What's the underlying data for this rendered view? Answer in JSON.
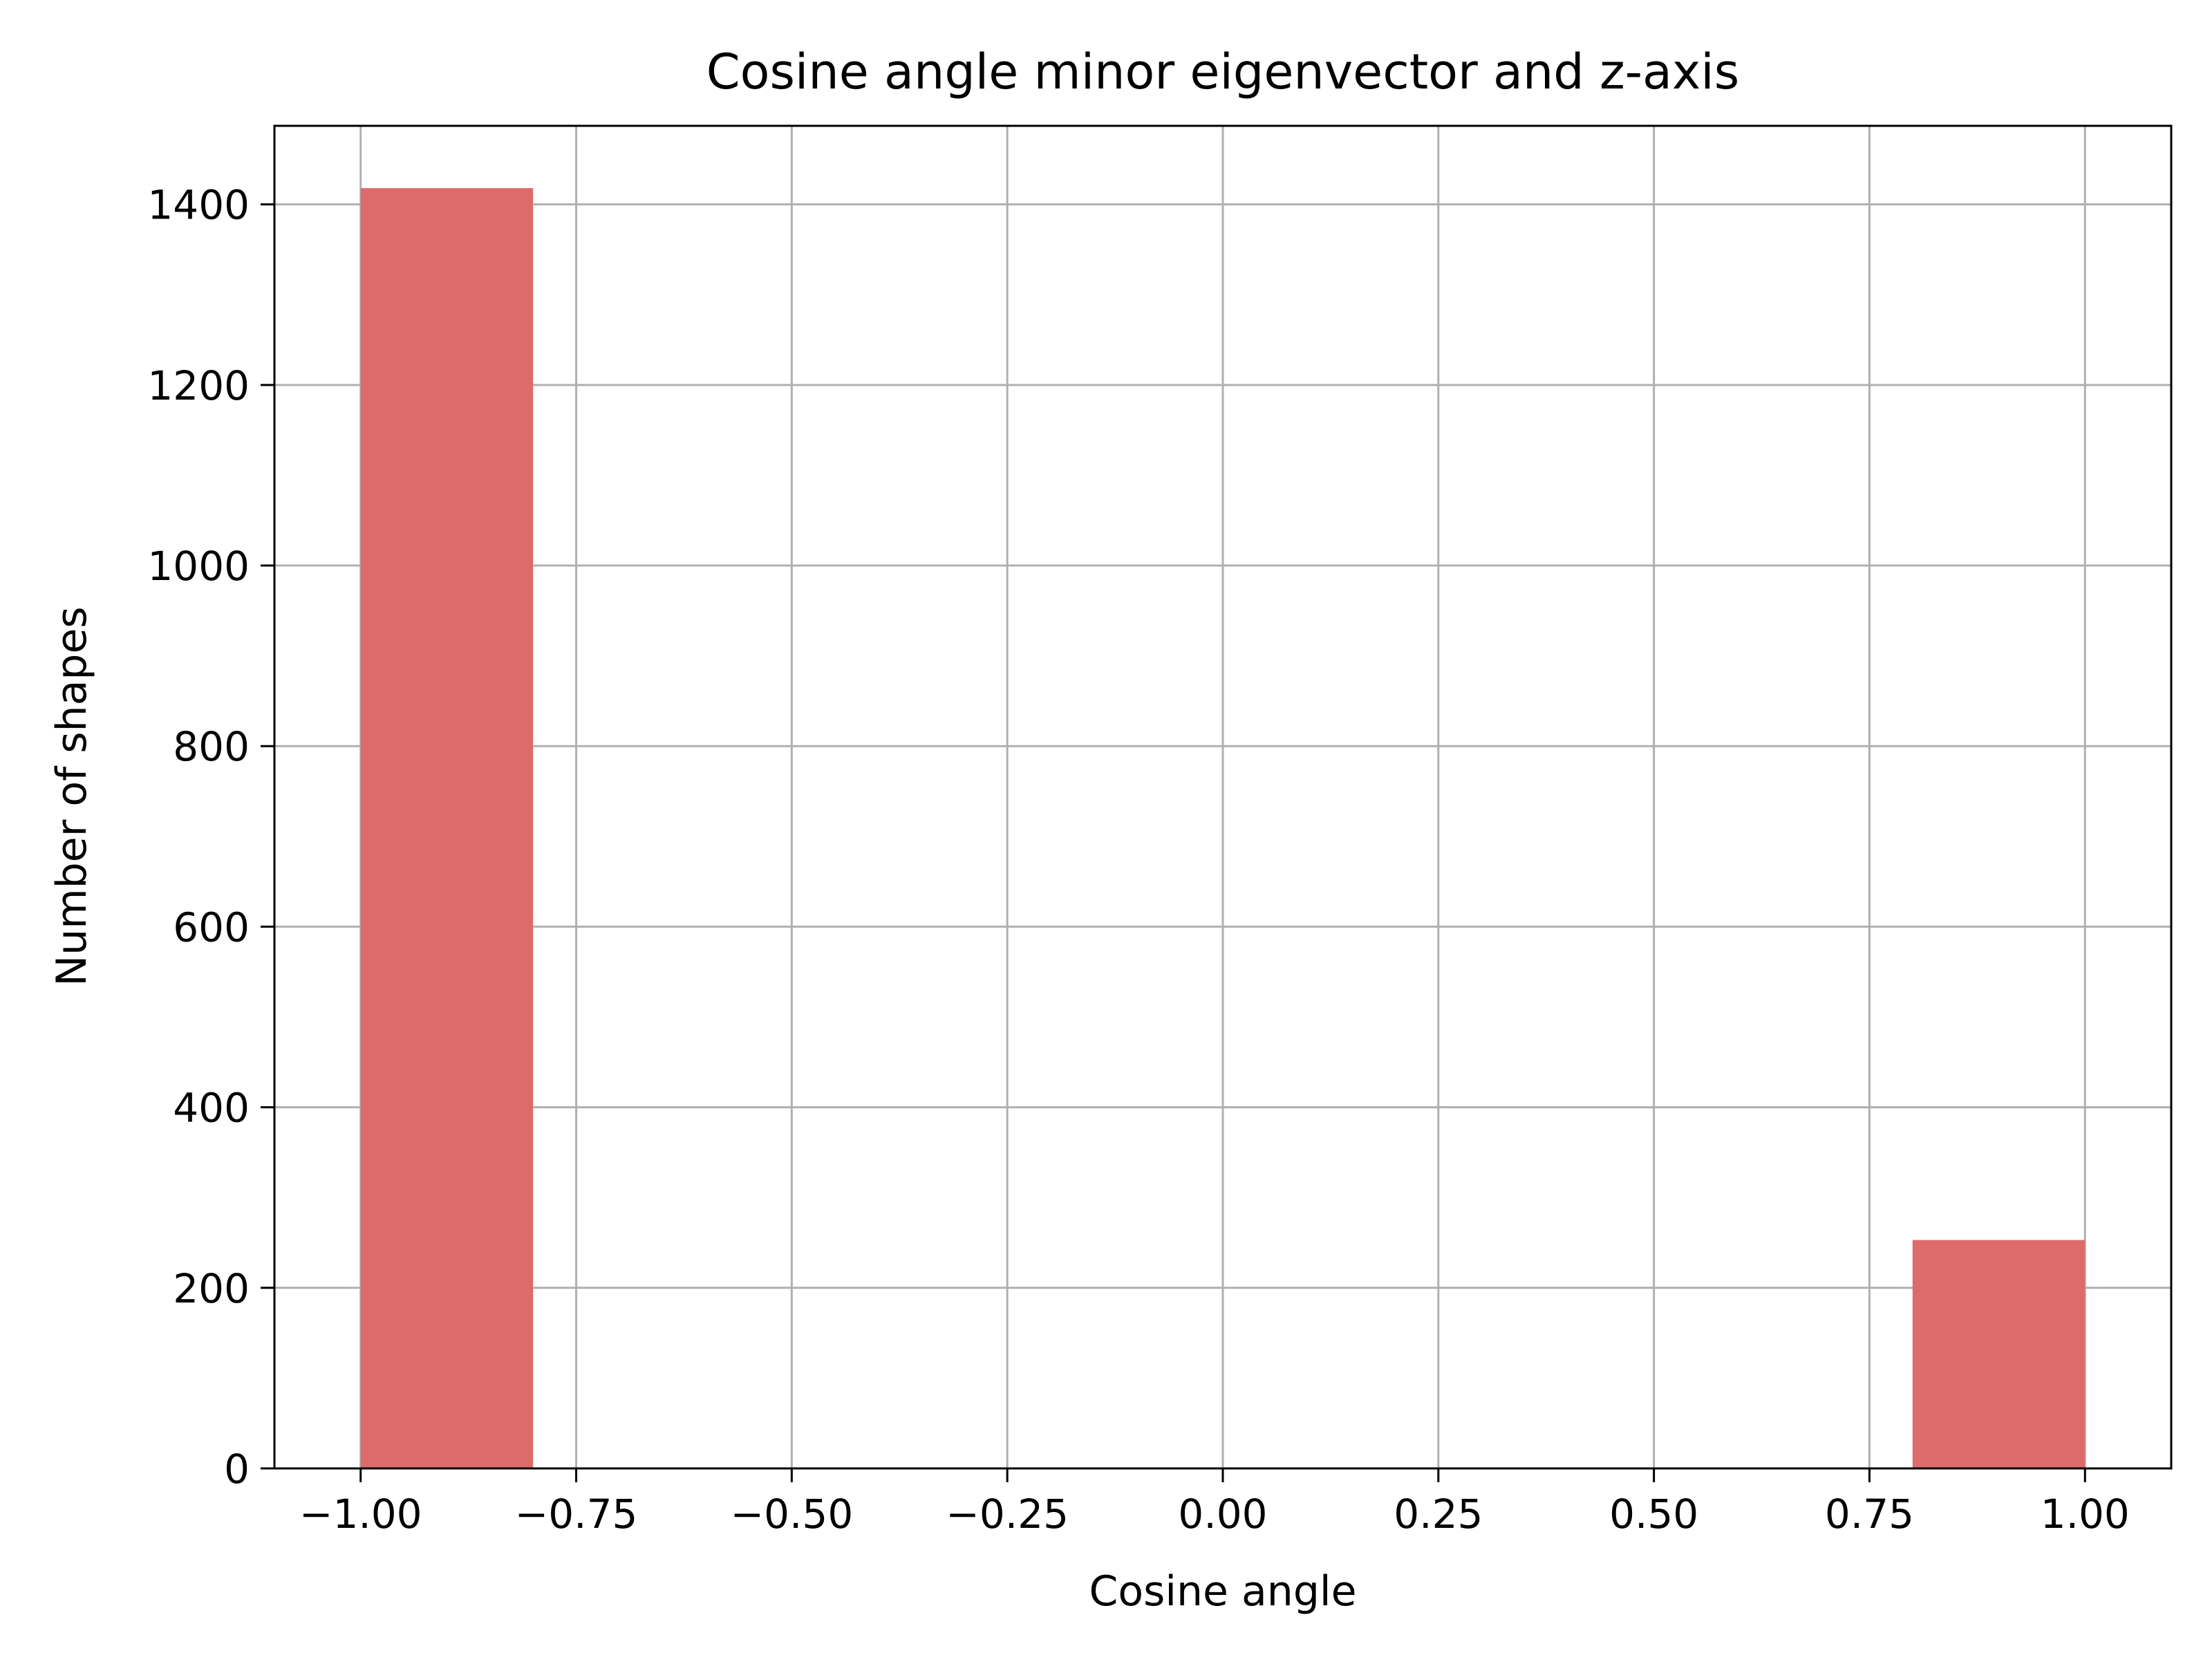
{
  "chart_data": {
    "type": "bar",
    "title": "Cosine angle minor eigenvector and z-axis",
    "xlabel": "Cosine angle",
    "ylabel": "Number of shapes",
    "xlim": [
      -1.1,
      1.1
    ],
    "ylim": [
      0,
      1487
    ],
    "grid": true,
    "legend": "none",
    "bar_color": "#dc6b69",
    "grid_color": "#b0b0b0",
    "bins": [
      {
        "x0": -1.0,
        "x1": -0.8,
        "value": 1418
      },
      {
        "x0": -0.8,
        "x1": -0.6,
        "value": 0
      },
      {
        "x0": -0.6,
        "x1": -0.4,
        "value": 0
      },
      {
        "x0": -0.4,
        "x1": -0.2,
        "value": 0
      },
      {
        "x0": -0.2,
        "x1": 0.0,
        "value": 0
      },
      {
        "x0": 0.0,
        "x1": 0.2,
        "value": 0
      },
      {
        "x0": 0.2,
        "x1": 0.4,
        "value": 0
      },
      {
        "x0": 0.4,
        "x1": 0.6,
        "value": 0
      },
      {
        "x0": 0.6,
        "x1": 0.8,
        "value": 0
      },
      {
        "x0": 0.8,
        "x1": 1.0,
        "value": 253
      }
    ],
    "xticks": [
      {
        "value": -1.0,
        "label": "−1.00"
      },
      {
        "value": -0.75,
        "label": "−0.75"
      },
      {
        "value": -0.5,
        "label": "−0.50"
      },
      {
        "value": -0.25,
        "label": "−0.25"
      },
      {
        "value": 0.0,
        "label": "0.00"
      },
      {
        "value": 0.25,
        "label": "0.25"
      },
      {
        "value": 0.5,
        "label": "0.50"
      },
      {
        "value": 0.75,
        "label": "0.75"
      },
      {
        "value": 1.0,
        "label": "1.00"
      }
    ],
    "yticks": [
      {
        "value": 0,
        "label": "0"
      },
      {
        "value": 200,
        "label": "200"
      },
      {
        "value": 400,
        "label": "400"
      },
      {
        "value": 600,
        "label": "600"
      },
      {
        "value": 800,
        "label": "800"
      },
      {
        "value": 1000,
        "label": "1000"
      },
      {
        "value": 1200,
        "label": "1200"
      },
      {
        "value": 1400,
        "label": "1400"
      }
    ]
  }
}
